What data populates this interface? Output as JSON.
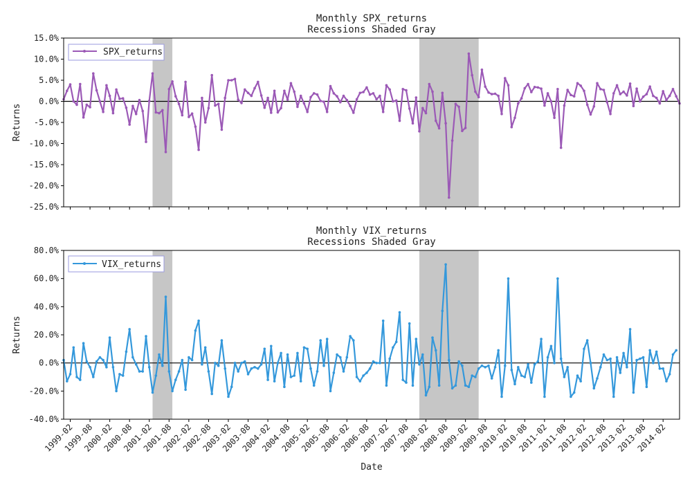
{
  "figure": {
    "xlabel": "Date",
    "x_ticks": [
      "1999-02",
      "1999-08",
      "2000-02",
      "2000-08",
      "2001-02",
      "2001-08",
      "2002-02",
      "2002-08",
      "2003-02",
      "2003-08",
      "2004-02",
      "2004-08",
      "2005-02",
      "2005-08",
      "2006-02",
      "2006-08",
      "2007-02",
      "2007-08",
      "2008-02",
      "2008-08",
      "2009-02",
      "2009-08",
      "2010-02",
      "2010-08",
      "2011-02",
      "2011-08",
      "2012-02",
      "2012-08",
      "2013-02",
      "2013-08",
      "2014-02"
    ]
  },
  "chart_data": [
    {
      "type": "line",
      "title": "Monthly SPX_returns",
      "subtitle": "Recessions Shaded Gray",
      "xlabel": "",
      "ylabel": "Returns",
      "ylim": [
        -25,
        15
      ],
      "y_ticks": [
        -25,
        -20,
        -15,
        -10,
        -5,
        0,
        5,
        10,
        15
      ],
      "y_tick_labels": [
        "-25.0%",
        "-20.0%",
        "-15.0%",
        "-10.0%",
        "-5.0%",
        "0.0%",
        "5.0%",
        "10.0%",
        "15.0%"
      ],
      "xlim": [
        "1998-12",
        "2014-07"
      ],
      "grid": false,
      "legend": "top-left",
      "color": "#9b59b6",
      "recessions": [
        [
          "2001-03",
          "2001-09"
        ],
        [
          "2007-12",
          "2009-06"
        ]
      ],
      "series": [
        {
          "name": "SPX_returns",
          "x_start": "1998-12",
          "values": [
            0.5,
            2.5,
            4.0,
            0.0,
            -0.8,
            4.1,
            -3.8,
            -0.8,
            -1.4,
            6.6,
            2.6,
            0.0,
            -2.5,
            3.8,
            1.3,
            -2.8,
            2.8,
            0.6,
            0.7,
            -1.5,
            -5.5,
            -1.1,
            -3.0,
            0.3,
            -2.3,
            -9.6,
            0.1,
            6.6,
            -2.6,
            -2.8,
            -2.1,
            -12.0,
            2.9,
            4.7,
            1.2,
            -0.6,
            -3.3,
            4.6,
            -3.7,
            -2.9,
            -6.0,
            -11.5,
            0.8,
            -5.0,
            -1.6,
            6.2,
            -1.0,
            -0.6,
            -6.7,
            0.8,
            5.0,
            5.0,
            5.3,
            0.4,
            -0.4,
            2.8,
            2.0,
            1.3,
            3.1,
            4.6,
            1.4,
            -1.5,
            0.8,
            -2.7,
            2.5,
            -2.6,
            -1.6,
            2.5,
            0.4,
            4.3,
            2.3,
            -1.3,
            1.3,
            -0.5,
            -2.5,
            1.0,
            1.9,
            1.6,
            0.1,
            -0.1,
            -2.5,
            3.6,
            1.9,
            1.2,
            -0.2,
            1.3,
            0.3,
            -1.1,
            -2.7,
            0.5,
            2.0,
            2.2,
            3.3,
            1.6,
            1.9,
            0.5,
            1.3,
            -2.5,
            3.8,
            2.8,
            0.0,
            0.2,
            -4.6,
            2.9,
            2.6,
            -1.7,
            -5.2,
            0.9,
            -7.1,
            -1.6,
            -2.8,
            4.1,
            2.3,
            -4.6,
            -6.4,
            2.0,
            -5.2,
            -22.8,
            -9.3,
            -0.6,
            -1.3,
            -7.0,
            -6.3,
            11.3,
            6.2,
            2.3,
            1.0,
            7.5,
            3.5,
            2.1,
            1.7,
            1.8,
            1.3,
            -3.0,
            5.5,
            3.8,
            -6.1,
            -3.9,
            -0.5,
            0.7,
            3.1,
            4.1,
            2.2,
            3.4,
            3.3,
            3.0,
            -1.0,
            1.9,
            0.0,
            -3.9,
            2.9,
            -11.0,
            -1.0,
            2.7,
            1.5,
            1.2,
            4.3,
            3.7,
            2.5,
            -0.8,
            -3.1,
            -1.2,
            4.3,
            2.9,
            2.7,
            -0.2,
            -3.0,
            1.9,
            3.8,
            1.7,
            2.3,
            1.4,
            4.2,
            -1.1,
            3.0,
            0.0,
            1.1,
            1.7,
            3.5,
            1.3,
            0.8,
            -0.5,
            2.4,
            0.3,
            1.3,
            2.9,
            1.2,
            -0.5
          ]
        }
      ]
    },
    {
      "type": "line",
      "title": "Monthly VIX_returns",
      "subtitle": "Recessions Shaded Gray",
      "xlabel": "Date",
      "ylabel": "Returns",
      "ylim": [
        -40,
        80
      ],
      "y_ticks": [
        -40,
        -20,
        0,
        20,
        40,
        60,
        80
      ],
      "y_tick_labels": [
        "-40.0%",
        "-20.0%",
        "0.0%",
        "20.0%",
        "40.0%",
        "60.0%",
        "80.0%"
      ],
      "xlim": [
        "1998-12",
        "2014-07"
      ],
      "grid": false,
      "legend": "top-left",
      "color": "#3498db",
      "recessions": [
        [
          "2001-03",
          "2001-09"
        ],
        [
          "2007-12",
          "2009-06"
        ]
      ],
      "series": [
        {
          "name": "VIX_returns",
          "x_start": "1998-12",
          "values": [
            2,
            -13,
            -8,
            11,
            -10,
            -12,
            14,
            1,
            -3,
            -10,
            1,
            4,
            2,
            -3,
            18,
            -3,
            -20,
            -8,
            -9,
            8,
            24,
            4,
            -1,
            -6,
            -6,
            19,
            -3,
            -21,
            -9,
            6,
            -2,
            47,
            -6,
            -20,
            -12,
            -6,
            2,
            -19,
            4,
            2,
            23,
            30,
            -1,
            11,
            -6,
            -22,
            0,
            -2,
            16,
            -4,
            -24,
            -17,
            0,
            -6,
            0,
            1,
            -8,
            -4,
            -3,
            -4,
            -1,
            10,
            -12,
            12,
            -13,
            0,
            7,
            -17,
            6,
            -10,
            -9,
            7,
            -13,
            11,
            10,
            -4,
            -16,
            -6,
            16,
            -2,
            17,
            -20,
            -7,
            6,
            4,
            -6,
            4,
            19,
            16,
            -10,
            -13,
            -9,
            -7,
            -4,
            1,
            0,
            0,
            30,
            -16,
            3,
            11,
            15,
            36,
            -12,
            -14,
            28,
            -16,
            17,
            -1,
            6,
            -23,
            -17,
            18,
            9,
            -16,
            37,
            70,
            2,
            -18,
            -16,
            1,
            -2,
            -16,
            -17,
            -9,
            -10,
            -4,
            -2,
            -3,
            -2,
            -11,
            -3,
            9,
            -24,
            -2,
            60,
            -5,
            -15,
            -3,
            -9,
            -10,
            -1,
            -14,
            -1,
            1,
            17,
            -24,
            4,
            12,
            0,
            60,
            3,
            -10,
            -3,
            -24,
            -21,
            -9,
            -13,
            10,
            16,
            0,
            -18,
            -11,
            -3,
            6,
            2,
            3,
            -24,
            4,
            -7,
            7,
            -3,
            24,
            -21,
            2,
            3,
            4,
            -17,
            9,
            0,
            8,
            -4,
            -4,
            -13,
            -8,
            6,
            9
          ]
        }
      ]
    }
  ]
}
